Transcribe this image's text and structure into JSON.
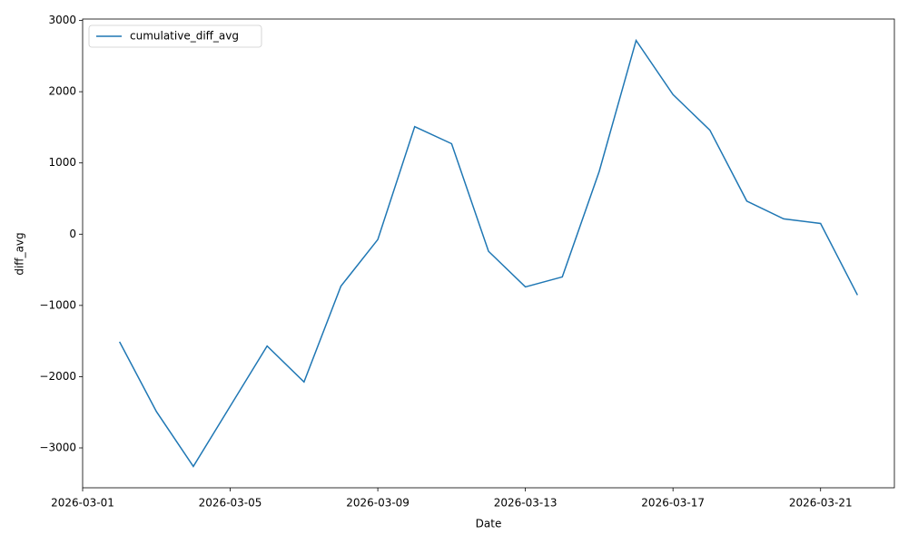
{
  "chart_data": {
    "type": "line",
    "x_label": "Date",
    "y_label": "diff_avg",
    "x": [
      "2026-03-02",
      "2026-03-03",
      "2026-03-04",
      "2026-03-05",
      "2026-03-06",
      "2026-03-07",
      "2026-03-08",
      "2026-03-09",
      "2026-03-10",
      "2026-03-11",
      "2026-03-12",
      "2026-03-13",
      "2026-03-14",
      "2026-03-15",
      "2026-03-16",
      "2026-03-17",
      "2026-03-18",
      "2026-03-19",
      "2026-03-20",
      "2026-03-21",
      "2026-03-22"
    ],
    "series": [
      {
        "name": "cumulative_diff_avg",
        "color": "#1f77b4",
        "values": [
          -1510,
          -2490,
          -3260,
          -2415,
          -1570,
          -2075,
          -730,
          -75,
          1510,
          1270,
          -240,
          -740,
          -600,
          880,
          2720,
          1960,
          1460,
          465,
          215,
          150,
          -855
        ]
      }
    ],
    "xlim": [
      "2026-03-01",
      "2026-03-23"
    ],
    "xticks": [
      "2026-03-01",
      "2026-03-05",
      "2026-03-09",
      "2026-03-13",
      "2026-03-17",
      "2026-03-21"
    ],
    "ylim": [
      -3560,
      3020
    ],
    "yticks": [
      {
        "value": -3000,
        "label": "−3000"
      },
      {
        "value": -2000,
        "label": "−2000"
      },
      {
        "value": -1000,
        "label": "−1000"
      },
      0,
      1000,
      2000,
      3000
    ],
    "legend": "upper left",
    "grid": false
  }
}
